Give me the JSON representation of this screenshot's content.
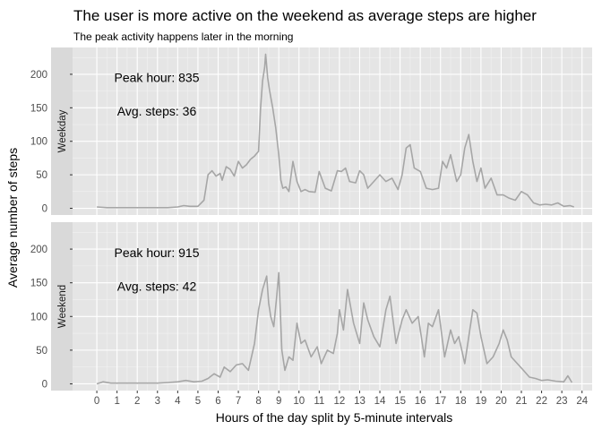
{
  "chart_data": {
    "type": "line",
    "title": "The user is more active on the weekend as average steps are higher",
    "subtitle": "The peak activity happens later in the morning",
    "xlabel": "Hours of the day split by 5-minute intervals",
    "ylabel": "Average number of steps",
    "xlim": [
      -1.2,
      24.5
    ],
    "ylim": [
      -10,
      240
    ],
    "x_ticks": [
      0,
      1,
      2,
      3,
      4,
      5,
      6,
      7,
      8,
      9,
      10,
      11,
      12,
      13,
      14,
      15,
      16,
      17,
      18,
      19,
      20,
      21,
      22,
      23,
      24
    ],
    "y_ticks": [
      0,
      50,
      100,
      150,
      200
    ],
    "line_color": "#a6a6a6",
    "panel_bg": "#e5e5e5",
    "strip_bg": "#d9d9d9",
    "grid": true,
    "facets": [
      {
        "name": "Weekday",
        "annotations": [
          "Peak hour:  835",
          "Avg. steps:  36"
        ],
        "x": [
          0,
          0.5,
          1,
          1.5,
          2,
          2.5,
          3,
          3.5,
          4,
          4.3,
          4.6,
          5,
          5.3,
          5.5,
          5.7,
          5.9,
          6.1,
          6.2,
          6.4,
          6.6,
          6.8,
          7,
          7.2,
          7.4,
          7.6,
          7.8,
          8,
          8.1,
          8.2,
          8.3,
          8.35,
          8.45,
          8.55,
          8.7,
          8.85,
          9,
          9.1,
          9.2,
          9.35,
          9.5,
          9.7,
          9.9,
          10.1,
          10.3,
          10.5,
          10.8,
          11,
          11.3,
          11.6,
          11.9,
          12.1,
          12.3,
          12.5,
          12.8,
          13,
          13.2,
          13.4,
          13.7,
          14,
          14.3,
          14.6,
          14.9,
          15.1,
          15.3,
          15.5,
          15.7,
          16,
          16.3,
          16.6,
          16.9,
          17.1,
          17.3,
          17.5,
          17.8,
          18,
          18.2,
          18.4,
          18.6,
          18.8,
          19,
          19.2,
          19.5,
          19.8,
          20.1,
          20.4,
          20.7,
          21,
          21.3,
          21.6,
          21.9,
          22.2,
          22.5,
          22.8,
          23.1,
          23.4,
          23.6
        ],
        "y": [
          2,
          1,
          1,
          1,
          1,
          1,
          1,
          1,
          2,
          4,
          3,
          3,
          12,
          50,
          56,
          48,
          52,
          42,
          62,
          58,
          48,
          70,
          60,
          65,
          73,
          78,
          85,
          150,
          190,
          210,
          230,
          195,
          175,
          150,
          120,
          80,
          42,
          30,
          32,
          25,
          70,
          40,
          25,
          28,
          25,
          24,
          55,
          30,
          26,
          56,
          55,
          60,
          40,
          38,
          56,
          50,
          30,
          40,
          50,
          40,
          45,
          28,
          50,
          90,
          95,
          60,
          55,
          30,
          28,
          30,
          70,
          60,
          80,
          40,
          50,
          90,
          110,
          70,
          40,
          60,
          30,
          45,
          20,
          20,
          15,
          12,
          25,
          20,
          8,
          5,
          6,
          5,
          8,
          3,
          4,
          2
        ]
      },
      {
        "name": "Weekend",
        "annotations": [
          "Peak hour:  915",
          "Avg. steps:  42"
        ],
        "x": [
          0,
          0.3,
          0.7,
          1,
          1.5,
          2,
          2.5,
          3,
          3.5,
          4,
          4.4,
          4.8,
          5.2,
          5.5,
          5.8,
          6.1,
          6.3,
          6.6,
          6.9,
          7.2,
          7.5,
          7.8,
          8,
          8.2,
          8.4,
          8.5,
          8.6,
          8.75,
          8.9,
          9,
          9.15,
          9.3,
          9.5,
          9.7,
          9.9,
          10.1,
          10.3,
          10.6,
          10.9,
          11.1,
          11.4,
          11.7,
          11.9,
          12,
          12.2,
          12.4,
          12.7,
          13,
          13.2,
          13.4,
          13.7,
          14,
          14.3,
          14.5,
          14.8,
          15.1,
          15.3,
          15.6,
          15.9,
          16.2,
          16.4,
          16.6,
          16.9,
          17.2,
          17.5,
          17.7,
          17.9,
          18.2,
          18.4,
          18.6,
          18.8,
          19,
          19.3,
          19.6,
          19.9,
          20.1,
          20.3,
          20.5,
          20.8,
          21.1,
          21.4,
          21.7,
          22,
          22.3,
          22.7,
          23.1,
          23.3,
          23.5
        ],
        "y": [
          0,
          3,
          1,
          1,
          1,
          1,
          1,
          1,
          2,
          3,
          5,
          3,
          4,
          8,
          15,
          10,
          25,
          18,
          28,
          30,
          20,
          60,
          110,
          140,
          160,
          120,
          100,
          85,
          130,
          165,
          50,
          20,
          40,
          35,
          90,
          60,
          65,
          40,
          55,
          30,
          50,
          45,
          75,
          110,
          80,
          140,
          90,
          60,
          120,
          95,
          70,
          55,
          110,
          130,
          60,
          95,
          110,
          90,
          100,
          40,
          90,
          85,
          110,
          40,
          80,
          60,
          70,
          30,
          70,
          110,
          105,
          70,
          30,
          40,
          60,
          80,
          65,
          40,
          30,
          20,
          10,
          8,
          5,
          6,
          4,
          3,
          12,
          2
        ]
      }
    ]
  }
}
